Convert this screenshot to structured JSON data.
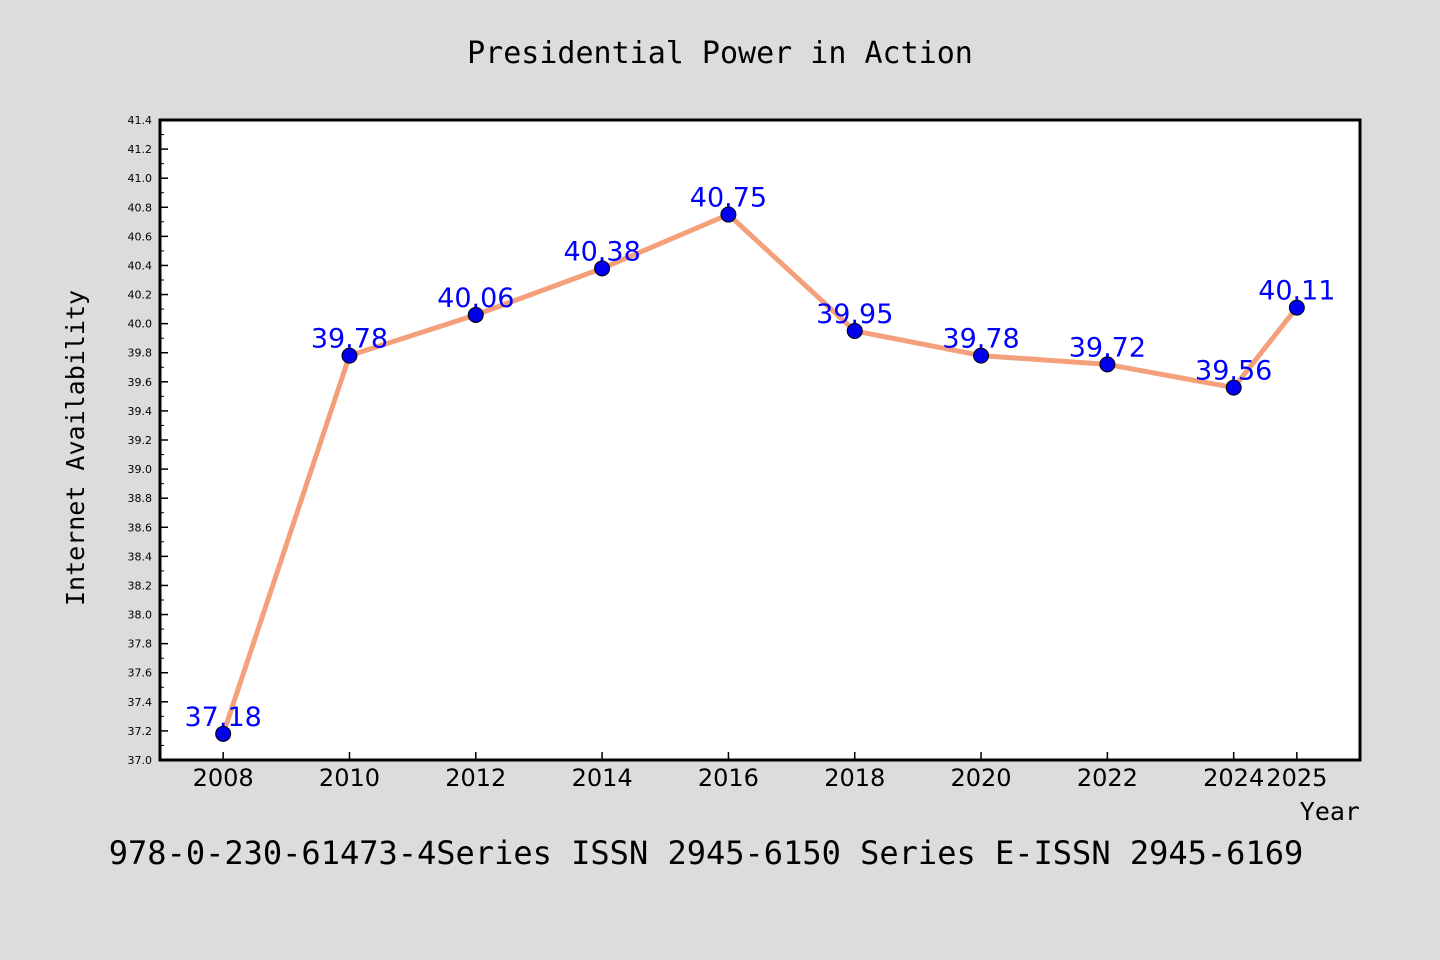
{
  "chart_data": {
    "type": "line",
    "title": "Presidential Power in Action",
    "xlabel": "Year",
    "ylabel": "Internet Availability",
    "footer": "978-0-230-61473-4Series ISSN 2945-6150 Series E-ISSN 2945-6169",
    "x": [
      2008,
      2010,
      2012,
      2014,
      2016,
      2018,
      2020,
      2022,
      2024,
      2025
    ],
    "x_tick_labels": [
      "2008",
      "2010",
      "2012",
      "2014",
      "2016",
      "2018",
      "2020",
      "2022",
      "2024",
      "2025"
    ],
    "series": [
      {
        "values": [
          37.18,
          39.78,
          40.06,
          40.38,
          40.75,
          39.95,
          39.78,
          39.72,
          39.56,
          40.11
        ],
        "data_labels": [
          "37.18",
          "39.78",
          "40.06",
          "40.38",
          "40.75",
          "39.95",
          "39.78",
          "39.72",
          "39.56",
          "40.11"
        ]
      }
    ],
    "ylim": [
      37.0,
      41.4
    ],
    "y_ticks": [
      37.0,
      37.2,
      37.4,
      37.6,
      37.8,
      38.0,
      38.2,
      38.4,
      38.6,
      38.8,
      39.0,
      39.2,
      39.4,
      39.6,
      39.8,
      40.0,
      40.2,
      40.4,
      40.6,
      40.8,
      41.0,
      41.2,
      41.4
    ],
    "y_tick_labels": [
      "37.0",
      "37.2",
      "37.4",
      "37.6",
      "37.8",
      "38.0",
      "38.2",
      "38.4",
      "38.6",
      "38.8",
      "39.0",
      "39.2",
      "39.4",
      "39.6",
      "39.8",
      "40.0",
      "40.2",
      "40.4",
      "40.6",
      "40.8",
      "41.0",
      "41.2",
      "41.4"
    ],
    "grid": false,
    "legend": "none",
    "colors": {
      "background": "#dcdcdc",
      "plot_area": "#ffffff",
      "line": "#f4a07a",
      "marker": "#0000ee",
      "data_label": "#0000ff",
      "text": "#000000"
    }
  }
}
